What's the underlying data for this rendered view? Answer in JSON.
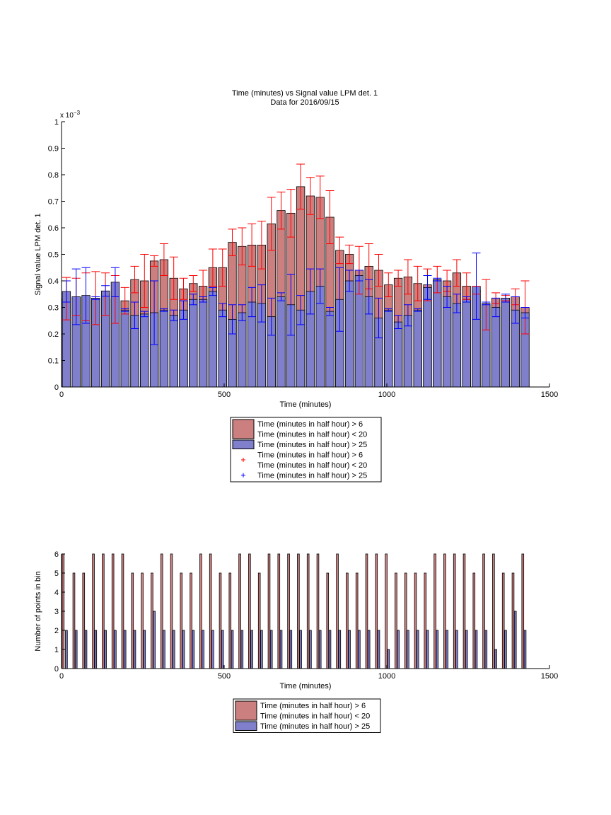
{
  "figure": {
    "title_line1": "Time (minutes) vs Signal value LPM det. 1",
    "title_line2": "Data for 2016/09/15"
  },
  "chart_data": [
    {
      "type": "bar",
      "title": "Time (minutes) vs Signal value LPM det. 1",
      "subtitle": "Data for 2016/09/15",
      "xlabel": "Time (minutes)",
      "ylabel": "Signal value LPM det. 1",
      "y_exponent_label": "x 10",
      "y_exponent": "−3",
      "xlim": [
        0,
        1500
      ],
      "ylim": [
        0,
        1
      ],
      "xticks": [
        0,
        500,
        1000,
        1500
      ],
      "yticks": [
        0,
        0.1,
        0.2,
        0.3,
        0.4,
        0.5,
        0.6,
        0.7,
        0.8,
        0.9,
        1
      ],
      "ytick_labels": [
        "0",
        "0.1",
        "0.2",
        "0.3",
        "0.4",
        "0.5",
        "0.6",
        "0.7",
        "0.8",
        "0.9",
        "1"
      ],
      "grid": false,
      "legend_position": "below",
      "bar_width": 25,
      "x": [
        15,
        45,
        75,
        105,
        135,
        165,
        195,
        225,
        255,
        285,
        315,
        345,
        375,
        405,
        435,
        465,
        495,
        525,
        555,
        585,
        615,
        645,
        675,
        705,
        735,
        765,
        795,
        825,
        855,
        885,
        915,
        945,
        975,
        1005,
        1035,
        1065,
        1095,
        1125,
        1155,
        1185,
        1215,
        1245,
        1275,
        1305,
        1335,
        1365,
        1395,
        1425
      ],
      "series": [
        {
          "name": "Time (minutes in half hour) > 6\nTime (minutes in half hour) < 20",
          "color": "#cc7f7f",
          "error_color": "#ff0000",
          "values": [
            0.333,
            0.34,
            0.34,
            0.335,
            0.35,
            0.33,
            0.325,
            0.405,
            0.4,
            0.475,
            0.48,
            0.41,
            0.37,
            0.39,
            0.38,
            0.45,
            0.45,
            0.545,
            0.53,
            0.535,
            0.535,
            0.615,
            0.665,
            0.655,
            0.755,
            0.72,
            0.715,
            0.64,
            0.515,
            0.5,
            0.44,
            0.455,
            0.44,
            0.385,
            0.41,
            0.415,
            0.39,
            0.385,
            0.405,
            0.4,
            0.43,
            0.38,
            0.365,
            0.31,
            0.335,
            0.335,
            0.34,
            0.3
          ],
          "errors": [
            0.08,
            0.07,
            0.09,
            0.1,
            0.08,
            0.09,
            0.05,
            0.05,
            0.1,
            0.02,
            0.06,
            0.08,
            0.04,
            0.03,
            0.06,
            0.07,
            0.07,
            0.05,
            0.07,
            0.08,
            0.09,
            0.1,
            0.07,
            0.09,
            0.085,
            0.07,
            0.08,
            0.1,
            0.05,
            0.035,
            0.09,
            0.085,
            0.06,
            0.045,
            0.03,
            0.065,
            0.065,
            0.06,
            0.05,
            0.04,
            0.05,
            0.05,
            0.015,
            0.095,
            0.02,
            0.01,
            0.03,
            0.1
          ]
        },
        {
          "name": "Time (minutes in half hour) > 25",
          "color": "#7f7fcc",
          "error_color": "#0000ff",
          "values": [
            0.36,
            0.34,
            0.345,
            0.335,
            0.362,
            0.395,
            0.29,
            0.27,
            0.275,
            0.28,
            0.29,
            0.27,
            0.29,
            0.33,
            0.33,
            0.36,
            0.29,
            0.255,
            0.28,
            0.32,
            0.315,
            0.265,
            0.34,
            0.31,
            0.29,
            0.36,
            0.38,
            0.285,
            0.33,
            0.4,
            0.42,
            0.34,
            0.26,
            0.29,
            0.245,
            0.27,
            0.29,
            0.375,
            0.405,
            0.34,
            0.315,
            0.33,
            0.38,
            0.315,
            0.3,
            0.335,
            0.29,
            0.28
          ],
          "errors": [
            0.04,
            0.105,
            0.105,
            0.005,
            0.02,
            0.055,
            0.005,
            0.05,
            0.01,
            0.12,
            0.005,
            0.02,
            0.035,
            0.02,
            0.01,
            0.015,
            0.025,
            0.055,
            0.03,
            0.055,
            0.07,
            0.07,
            0.015,
            0.115,
            0.055,
            0.085,
            0.065,
            0.015,
            0.12,
            0.04,
            0.02,
            0.065,
            0.075,
            0.005,
            0.025,
            0.04,
            0.005,
            0.045,
            0.005,
            0.04,
            0.035,
            0.01,
            0.125,
            0.005,
            0.035,
            0.015,
            0.05,
            0.02
          ]
        }
      ],
      "legend": [
        {
          "line1": "Time (minutes in half hour) > 6",
          "line2": "Time (minutes in half hour) < 20",
          "marker": "patch",
          "color": "#cc7f7f"
        },
        {
          "line1": "Time (minutes in half hour) > 25",
          "marker": "patch",
          "color": "#7f7fcc"
        },
        {
          "line1": "Time (minutes in half hour) > 6",
          "line2": "Time (minutes in half hour) < 20",
          "marker": "+",
          "color": "#ff0000"
        },
        {
          "line1": "Time (minutes in half hour) > 25",
          "marker": "+",
          "color": "#0000ff"
        }
      ]
    },
    {
      "type": "bar",
      "xlabel": "Time (minutes)",
      "ylabel": "Number of points in bin",
      "xlim": [
        0,
        1500
      ],
      "ylim": [
        0,
        6
      ],
      "xticks": [
        0,
        500,
        1000,
        1500
      ],
      "yticks": [
        0,
        1,
        2,
        3,
        4,
        5,
        6
      ],
      "grid": false,
      "legend_position": "below",
      "bar_width": 6,
      "series": [
        {
          "name": "Time (minutes in half hour) > 6\nTime (minutes in half hour) < 20",
          "color": "#cc7f7f",
          "x": [
            5,
            38,
            68,
            98,
            128,
            158,
            188,
            218,
            248,
            278,
            308,
            338,
            368,
            398,
            428,
            458,
            488,
            518,
            548,
            578,
            608,
            638,
            668,
            698,
            728,
            758,
            788,
            818,
            848,
            878,
            908,
            938,
            968,
            998,
            1028,
            1058,
            1088,
            1118,
            1148,
            1178,
            1208,
            1238,
            1268,
            1298,
            1328,
            1358,
            1388,
            1418
          ],
          "values": [
            6,
            5,
            5,
            6,
            6,
            6,
            6,
            5,
            5,
            5,
            6,
            6,
            5,
            5,
            6,
            6,
            5,
            5,
            6,
            6,
            5,
            6,
            6,
            6,
            6,
            6,
            6,
            5,
            6,
            5,
            5,
            6,
            6,
            6,
            5,
            5,
            5,
            5,
            6,
            6,
            6,
            6,
            5,
            6,
            6,
            5,
            5,
            6
          ]
        },
        {
          "name": "Time (minutes in half hour) > 25",
          "color": "#7f7fcc",
          "x": [
            15,
            45,
            75,
            105,
            135,
            165,
            195,
            225,
            255,
            285,
            315,
            345,
            375,
            405,
            435,
            465,
            495,
            525,
            555,
            585,
            615,
            645,
            675,
            705,
            735,
            765,
            795,
            825,
            855,
            885,
            915,
            945,
            975,
            1005,
            1035,
            1065,
            1095,
            1125,
            1155,
            1185,
            1215,
            1245,
            1275,
            1305,
            1335,
            1365,
            1395,
            1425
          ],
          "values": [
            2,
            2,
            2,
            2,
            2,
            2,
            2,
            2,
            2,
            3,
            2,
            2,
            2,
            2,
            2,
            2,
            2,
            2,
            2,
            2,
            2,
            2,
            2,
            2,
            2,
            2,
            2,
            2,
            2,
            2,
            2,
            2,
            2,
            1,
            2,
            2,
            2,
            2,
            2,
            2,
            2,
            2,
            2,
            2,
            1,
            2,
            3,
            2
          ]
        }
      ],
      "legend": [
        {
          "line1": "Time (minutes in half hour) > 6",
          "line2": "Time (minutes in half hour) < 20",
          "marker": "patch",
          "color": "#cc7f7f"
        },
        {
          "line1": "Time (minutes in half hour) > 25",
          "marker": "patch",
          "color": "#7f7fcc"
        }
      ]
    }
  ]
}
